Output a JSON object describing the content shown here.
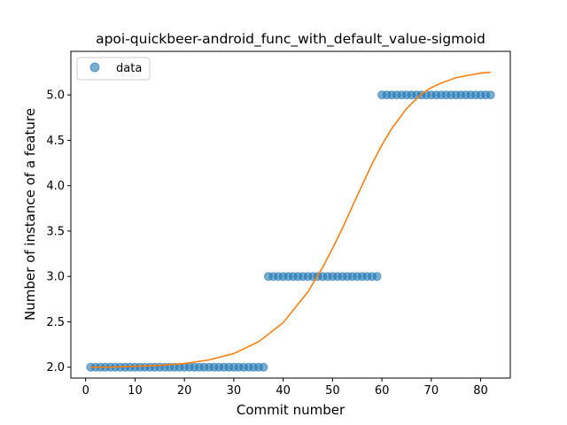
{
  "chart_data": {
    "type": "scatter",
    "title": "apoi-quickbeer-android_func_with_default_value-sigmoid",
    "xlabel": "Commit number",
    "ylabel": "Number of instance of a feature",
    "xlim": [
      -3,
      86
    ],
    "ylim": [
      1.88,
      5.48
    ],
    "xticks": [
      0,
      10,
      20,
      30,
      40,
      50,
      60,
      70,
      80
    ],
    "yticks": [
      2.0,
      2.5,
      3.0,
      3.5,
      4.0,
      4.5,
      5.0
    ],
    "ytick_labels": [
      "2.0",
      "2.5",
      "3.0",
      "3.5",
      "4.0",
      "4.5",
      "5.0"
    ],
    "legend": {
      "position": "top-left",
      "entries": [
        "data"
      ]
    },
    "grid": false,
    "colors": {
      "data": "#1f77b4",
      "fit": "#ff7f0e"
    },
    "series": [
      {
        "name": "data",
        "kind": "points",
        "x": [
          1,
          2,
          3,
          4,
          5,
          6,
          7,
          8,
          9,
          10,
          11,
          12,
          13,
          14,
          15,
          16,
          17,
          18,
          19,
          20,
          21,
          22,
          23,
          24,
          25,
          26,
          27,
          28,
          29,
          30,
          31,
          32,
          33,
          34,
          35,
          36,
          37,
          38,
          39,
          40,
          41,
          42,
          43,
          44,
          45,
          46,
          47,
          48,
          49,
          50,
          51,
          52,
          53,
          54,
          55,
          56,
          57,
          58,
          59,
          60,
          61,
          62,
          63,
          64,
          65,
          66,
          67,
          68,
          69,
          70,
          71,
          72,
          73,
          74,
          75,
          76,
          77,
          78,
          79,
          80,
          81,
          82
        ],
        "y": [
          2,
          2,
          2,
          2,
          2,
          2,
          2,
          2,
          2,
          2,
          2,
          2,
          2,
          2,
          2,
          2,
          2,
          2,
          2,
          2,
          2,
          2,
          2,
          2,
          2,
          2,
          2,
          2,
          2,
          2,
          2,
          2,
          2,
          2,
          2,
          2,
          3,
          3,
          3,
          3,
          3,
          3,
          3,
          3,
          3,
          3,
          3,
          3,
          3,
          3,
          3,
          3,
          3,
          3,
          3,
          3,
          3,
          3,
          3,
          5,
          5,
          5,
          5,
          5,
          5,
          5,
          5,
          5,
          5,
          5,
          5,
          5,
          5,
          5,
          5,
          5,
          5,
          5,
          5,
          5,
          5,
          5
        ]
      },
      {
        "kind": "line",
        "x": [
          1,
          5,
          10,
          15,
          20,
          25,
          30,
          35,
          40,
          45,
          48,
          50,
          52,
          55,
          58,
          60,
          62,
          65,
          68,
          70,
          72,
          75,
          78,
          80,
          82
        ],
        "y": [
          2.0,
          2.0,
          2.01,
          2.02,
          2.04,
          2.08,
          2.15,
          2.28,
          2.49,
          2.83,
          3.1,
          3.31,
          3.53,
          3.89,
          4.24,
          4.45,
          4.63,
          4.85,
          5.01,
          5.08,
          5.13,
          5.19,
          5.22,
          5.24,
          5.25
        ]
      }
    ]
  }
}
